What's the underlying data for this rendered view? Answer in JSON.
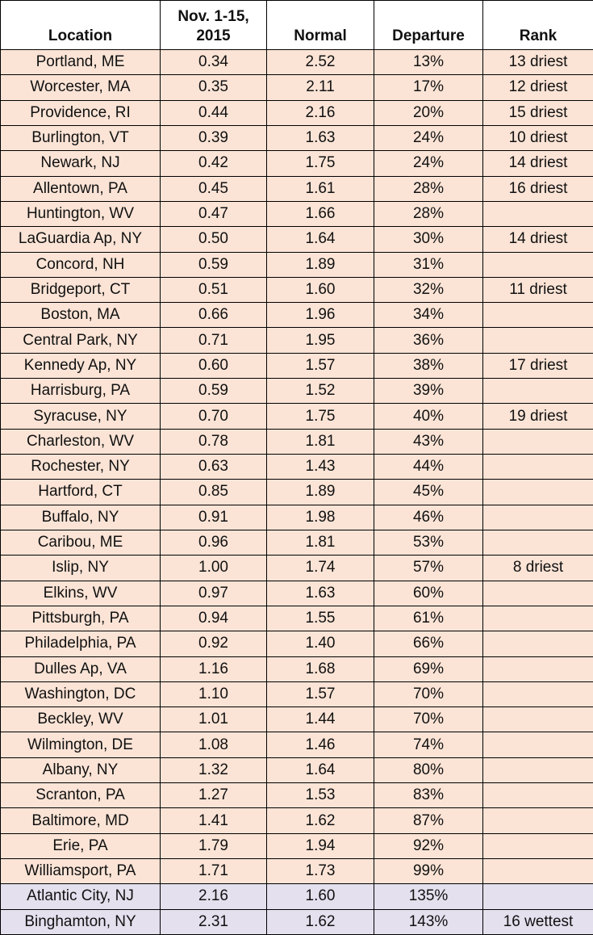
{
  "table": {
    "header": [
      "Location",
      "Nov. 1-15,\n2015",
      "Normal",
      "Departure",
      "Rank"
    ],
    "rows": [
      [
        "Portland, ME",
        "0.34",
        "2.52",
        "13%",
        "13 driest"
      ],
      [
        "Worcester, MA",
        "0.35",
        "2.11",
        "17%",
        "12 driest"
      ],
      [
        "Providence, RI",
        "0.44",
        "2.16",
        "20%",
        "15 driest"
      ],
      [
        "Burlington, VT",
        "0.39",
        "1.63",
        "24%",
        "10 driest"
      ],
      [
        "Newark, NJ",
        "0.42",
        "1.75",
        "24%",
        "14 driest"
      ],
      [
        "Allentown, PA",
        "0.45",
        "1.61",
        "28%",
        "16 driest"
      ],
      [
        "Huntington, WV",
        "0.47",
        "1.66",
        "28%",
        null
      ],
      [
        "LaGuardia Ap, NY",
        "0.50",
        "1.64",
        "30%",
        "14 driest"
      ],
      [
        "Concord, NH",
        "0.59",
        "1.89",
        "31%",
        null
      ],
      [
        "Bridgeport, CT",
        "0.51",
        "1.60",
        "32%",
        "11 driest"
      ],
      [
        "Boston, MA",
        "0.66",
        "1.96",
        "34%",
        null
      ],
      [
        "Central Park, NY",
        "0.71",
        "1.95",
        "36%",
        null
      ],
      [
        "Kennedy Ap, NY",
        "0.60",
        "1.57",
        "38%",
        "17 driest"
      ],
      [
        "Harrisburg, PA",
        "0.59",
        "1.52",
        "39%",
        null
      ],
      [
        "Syracuse, NY",
        "0.70",
        "1.75",
        "40%",
        "19 driest"
      ],
      [
        "Charleston, WV",
        "0.78",
        "1.81",
        "43%",
        null
      ],
      [
        "Rochester, NY",
        "0.63",
        "1.43",
        "44%",
        null
      ],
      [
        "Hartford, CT",
        "0.85",
        "1.89",
        "45%",
        null
      ],
      [
        "Buffalo, NY",
        "0.91",
        "1.98",
        "46%",
        null
      ],
      [
        "Caribou, ME",
        "0.96",
        "1.81",
        "53%",
        null
      ],
      [
        "Islip, NY",
        "1.00",
        "1.74",
        "57%",
        "8 driest"
      ],
      [
        "Elkins, WV",
        "0.97",
        "1.63",
        "60%",
        null
      ],
      [
        "Pittsburgh, PA",
        "0.94",
        "1.55",
        "61%",
        null
      ],
      [
        "Philadelphia, PA",
        "0.92",
        "1.40",
        "66%",
        null
      ],
      [
        "Dulles Ap, VA",
        "1.16",
        "1.68",
        "69%",
        null
      ],
      [
        "Washington, DC",
        "1.10",
        "1.57",
        "70%",
        null
      ],
      [
        "Beckley, WV",
        "1.01",
        "1.44",
        "70%",
        null
      ],
      [
        "Wilmington, DE",
        "1.08",
        "1.46",
        "74%",
        null
      ],
      [
        "Albany, NY",
        "1.32",
        "1.64",
        "80%",
        null
      ],
      [
        "Scranton, PA",
        "1.27",
        "1.53",
        "83%",
        null
      ],
      [
        "Baltimore, MD",
        "1.41",
        "1.62",
        "87%",
        null
      ],
      [
        "Erie, PA",
        "1.79",
        "1.94",
        "92%",
        null
      ],
      [
        "Williamsport, PA",
        "1.71",
        "1.73",
        "99%",
        null
      ],
      [
        "Atlantic City, NJ",
        "2.16",
        "1.60",
        "135%",
        null
      ],
      [
        "Binghamton, NY",
        "2.31",
        "1.62",
        "143%",
        "16 wettest"
      ]
    ],
    "row_colors": [
      "#fbe4d6",
      "#fbe4d6",
      "#fbe4d6",
      "#fbe4d6",
      "#fbe4d6",
      "#fbe4d6",
      "#fbe4d6",
      "#fbe4d6",
      "#fbe4d6",
      "#fbe4d6",
      "#fbe4d6",
      "#fbe4d6",
      "#fbe4d6",
      "#fbe4d6",
      "#fbe4d6",
      "#fbe4d6",
      "#fbe4d6",
      "#fbe4d6",
      "#fbe4d6",
      "#fbe4d6",
      "#fbe4d6",
      "#fbe4d6",
      "#fbe4d6",
      "#fbe4d6",
      "#fbe4d6",
      "#fbe4d6",
      "#fbe4d6",
      "#fbe4d6",
      "#fbe4d6",
      "#fbe4d6",
      "#fbe4d6",
      "#fbe4d6",
      "#fbe4d6",
      "#e4e0ee",
      "#e4e0ee"
    ]
  }
}
